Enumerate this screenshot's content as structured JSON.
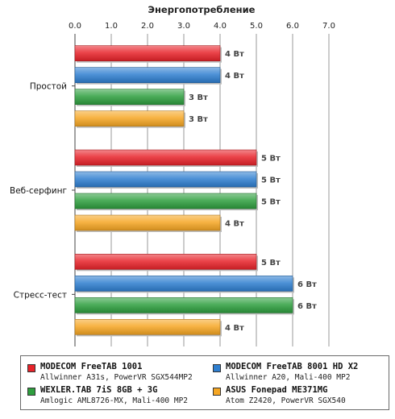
{
  "chart_data": {
    "type": "bar",
    "orientation": "horizontal",
    "title": "Энергопотребление",
    "xlim": [
      0,
      7
    ],
    "xticks": [
      "0.0",
      "1.0",
      "2.0",
      "3.0",
      "4.0",
      "5.0",
      "6.0",
      "7.0"
    ],
    "grid": true,
    "categories": [
      "Простой",
      "Веб-серфинг",
      "Стресс-тест"
    ],
    "value_suffix": " Вт",
    "series": [
      {
        "name": "MODECOM FreeTAB 1001",
        "detail": "Allwinner A31s, PowerVR SGX544MP2",
        "color": "#e8232a",
        "values": [
          4,
          5,
          5
        ]
      },
      {
        "name": "MODECOM FreeTAB 8001 HD X2",
        "detail": "Allwinner A20, Mali-400 MP2",
        "color": "#2f7fd0",
        "values": [
          4,
          5,
          6
        ]
      },
      {
        "name": "WEXLER.TAB 7iS 8GB + 3G",
        "detail": "Amlogic AML8726-MX, Mali-400 MP2",
        "color": "#2e9e3e",
        "values": [
          3,
          5,
          6
        ]
      },
      {
        "name": "ASUS Fonepad ME371MG",
        "detail": "Atom Z2420, PowerVR SGX540",
        "color": "#f5a623",
        "values": [
          3,
          4,
          4
        ]
      }
    ],
    "legend_position": "bottom"
  }
}
